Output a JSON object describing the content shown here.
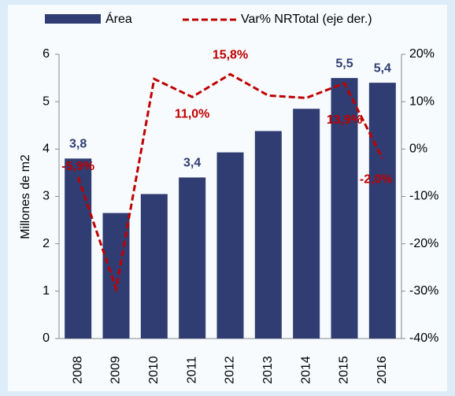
{
  "chart_data": {
    "type": "bar_line",
    "categories": [
      "2008",
      "2009",
      "2010",
      "2011",
      "2012",
      "2013",
      "2014",
      "2015",
      "2016"
    ],
    "series": [
      {
        "name": "Área",
        "type": "bar",
        "color": "#2f3d72",
        "values": [
          3.8,
          2.65,
          3.05,
          3.4,
          3.93,
          4.38,
          4.85,
          5.5,
          5.4
        ],
        "value_labels": [
          "3,8",
          null,
          null,
          "3,4",
          null,
          null,
          null,
          "5,5",
          "5,4"
        ]
      },
      {
        "name": "Var% NRTotal (eje der.)",
        "type": "line",
        "axis": "y2",
        "color": "#c00000",
        "values": [
          -5.9,
          -29.5,
          14.8,
          11.0,
          15.8,
          11.3,
          10.8,
          13.9,
          -2.0
        ],
        "value_labels": [
          "-5,9%",
          null,
          null,
          "11,0%",
          "15,8%",
          null,
          null,
          "13,9%",
          "-2,0%"
        ]
      }
    ],
    "ylabel": "Millones de m2",
    "ylim": [
      0,
      6
    ],
    "yticks": [
      0,
      1,
      2,
      3,
      4,
      5,
      6
    ],
    "y2lim": [
      -40,
      20
    ],
    "y2ticks": [
      {
        "value": -40,
        "label": "-40%"
      },
      {
        "value": -30,
        "label": "-30%"
      },
      {
        "value": -20,
        "label": "-20%"
      },
      {
        "value": -10,
        "label": "-10%"
      },
      {
        "value": 0,
        "label": "0%"
      },
      {
        "value": 10,
        "label": "10%"
      },
      {
        "value": 20,
        "label": "20%"
      }
    ],
    "legend": "top"
  }
}
